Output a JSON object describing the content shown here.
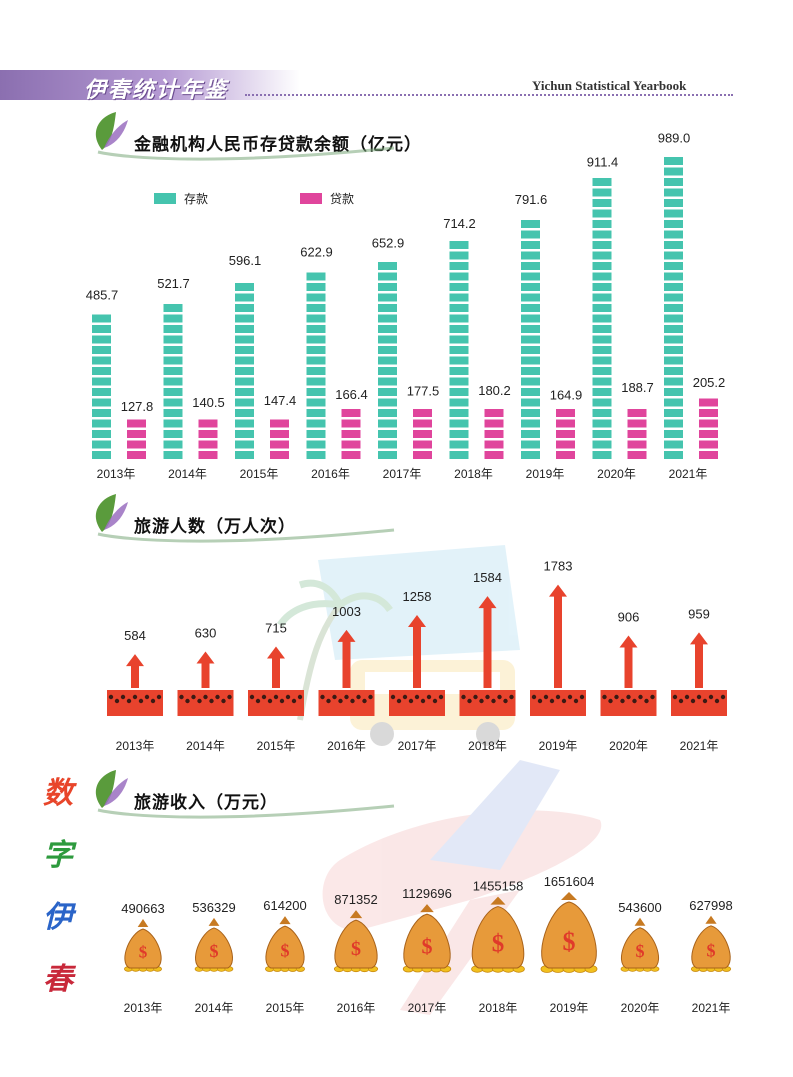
{
  "header": {
    "title_cn": "伊春统计年鉴",
    "title_en": "Yichun Statistical Yearbook"
  },
  "side_text": [
    "数",
    "字",
    "伊",
    "春"
  ],
  "colors": {
    "deposit": "#45c4ae",
    "loan": "#e0459c",
    "arrow": "#e8432d",
    "bag": "#e79a3a",
    "accent": "#8b6fb0"
  },
  "chart_data": [
    {
      "type": "bar",
      "title": "金融机构人民币存贷款余额（亿元）",
      "categories": [
        "2013年",
        "2014年",
        "2015年",
        "2016年",
        "2017年",
        "2018年",
        "2019年",
        "2020年",
        "2021年"
      ],
      "series": [
        {
          "name": "存款",
          "values": [
            485.7,
            521.7,
            596.1,
            622.9,
            652.9,
            714.2,
            791.6,
            911.4,
            989.0
          ],
          "labels": [
            "485.7",
            "521.7",
            "596.1",
            "622.9",
            "652.9",
            "714.2",
            "791.6",
            "911.4",
            "989.0"
          ]
        },
        {
          "name": "贷款",
          "values": [
            127.8,
            140.5,
            147.4,
            166.4,
            177.5,
            180.2,
            164.9,
            188.7,
            205.2
          ],
          "labels": [
            "127.8",
            "140.5",
            "147.4",
            "166.4",
            "177.5",
            "180.2",
            "164.9",
            "188.7",
            "205.2"
          ]
        }
      ]
    },
    {
      "type": "bar",
      "title": "旅游人数（万人次）",
      "categories": [
        "2013年",
        "2014年",
        "2015年",
        "2016年",
        "2017年",
        "2018年",
        "2019年",
        "2020年",
        "2021年"
      ],
      "values": [
        584,
        630,
        715,
        1003,
        1258,
        1584,
        1783,
        906,
        959
      ],
      "labels": [
        "584",
        "630",
        "715",
        "1003",
        "1258",
        "1584",
        "1783",
        "906",
        "959"
      ]
    },
    {
      "type": "bar",
      "title": "旅游收入（万元）",
      "categories": [
        "2013年",
        "2014年",
        "2015年",
        "2016年",
        "2017年",
        "2018年",
        "2019年",
        "2020年",
        "2021年"
      ],
      "values": [
        490663,
        536329,
        614200,
        871352,
        1129696,
        1455158,
        1651604,
        543600,
        627998
      ],
      "labels": [
        "490663",
        "536329",
        "614200",
        "871352",
        "1129696",
        "1455158",
        "1651604",
        "543600",
        "627998"
      ]
    }
  ]
}
